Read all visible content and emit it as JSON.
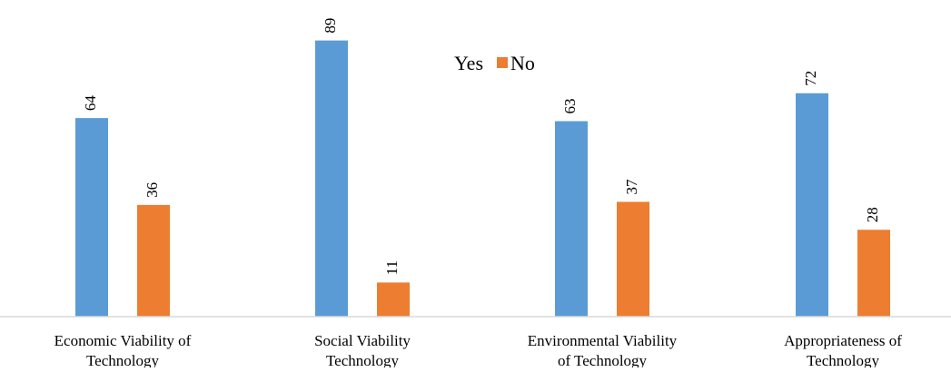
{
  "chart_data": {
    "type": "bar",
    "title": "",
    "xlabel": "",
    "ylabel": "",
    "ylim": [
      0,
      100
    ],
    "grid": false,
    "legend_position": "top-center",
    "categories": [
      [
        "Economic Viability of",
        "Technology"
      ],
      [
        "Social Viability",
        "Technology"
      ],
      [
        "Environmental Viability",
        "of Technology"
      ],
      [
        "Appropriateness of",
        "Technology"
      ]
    ],
    "series": [
      {
        "name": "Yes",
        "color": "#5B9BD5",
        "values": [
          64,
          89,
          63,
          72
        ]
      },
      {
        "name": "No",
        "color": "#ED7D31",
        "values": [
          36,
          11,
          37,
          28
        ]
      }
    ]
  }
}
